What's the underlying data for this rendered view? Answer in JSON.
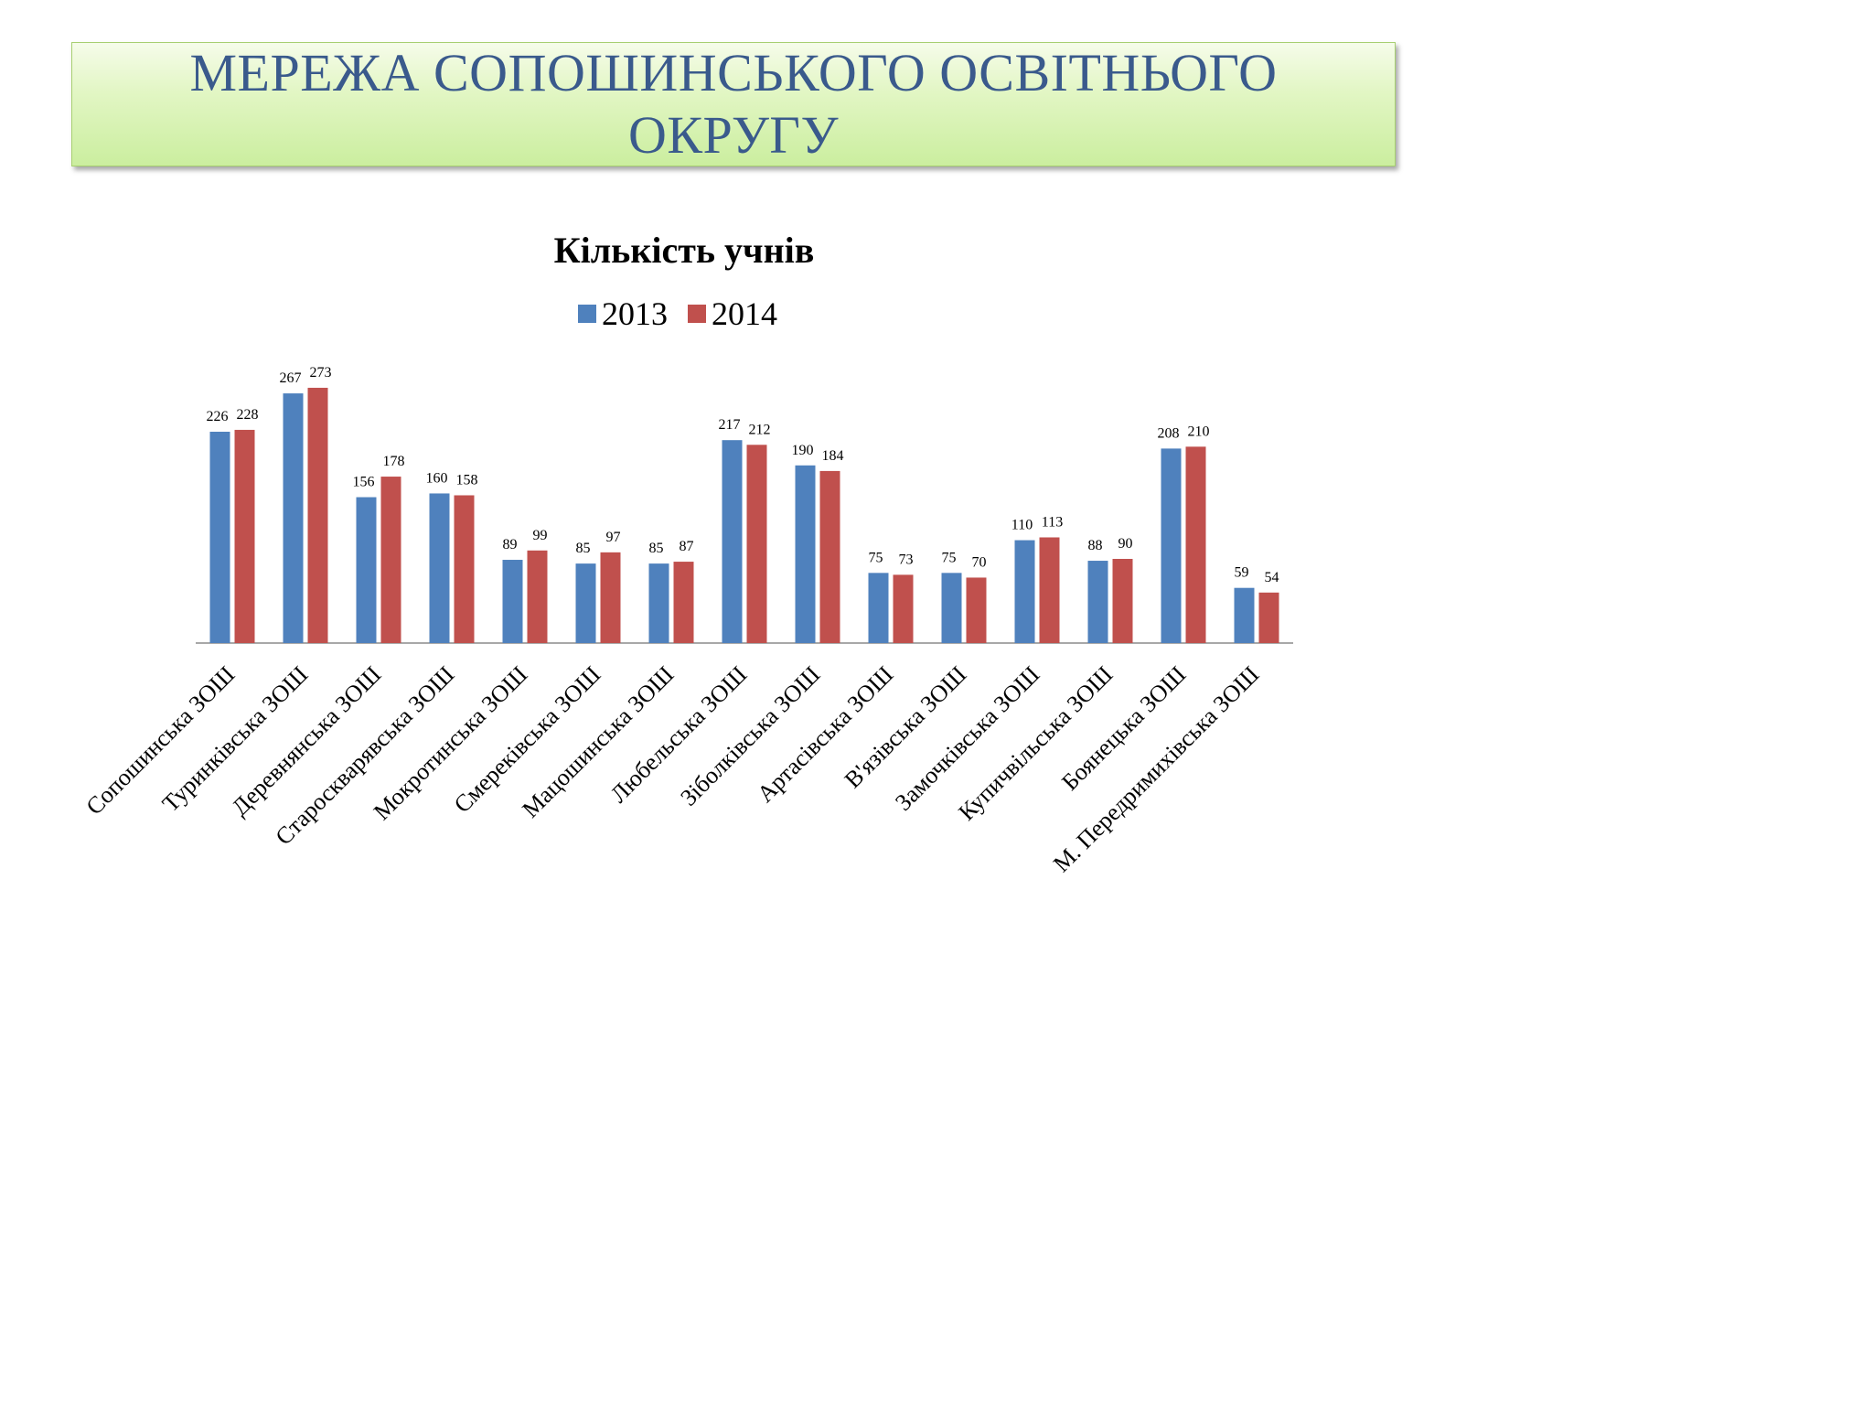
{
  "slide": {
    "title": "МЕРЕЖА СОПОШИНСЬКОГО ОСВІТНЬОГО ОКРУГУ"
  },
  "chart_data": {
    "type": "bar",
    "title": "Кількість учнів",
    "legend_position": "top",
    "grid": false,
    "categories": [
      "Сопошинська ЗОШ",
      "Туринківська ЗОШ",
      "Деревнянська ЗОШ",
      "Староскварявська ЗОШ",
      "Мокротинська ЗОШ",
      "Смереківська ЗОШ",
      "Мацошинська ЗОШ",
      "Любельська ЗОШ",
      "Зіболківська ЗОШ",
      "Артасівська ЗОШ",
      "В'язівська ЗОШ",
      "Замочківська ЗОШ",
      "Купичвільська ЗОШ",
      "Боянецька ЗОШ",
      "М. Передримихівська ЗОШ"
    ],
    "series": [
      {
        "name": "2013",
        "color": "#4f81bd",
        "values": [
          226,
          267,
          156,
          160,
          89,
          85,
          85,
          217,
          190,
          75,
          75,
          110,
          88,
          208,
          59
        ]
      },
      {
        "name": "2014",
        "color": "#c0504d",
        "values": [
          228,
          273,
          178,
          158,
          99,
          97,
          87,
          212,
          184,
          73,
          70,
          113,
          90,
          210,
          54
        ]
      }
    ],
    "ylim": [
      0,
      300
    ]
  }
}
